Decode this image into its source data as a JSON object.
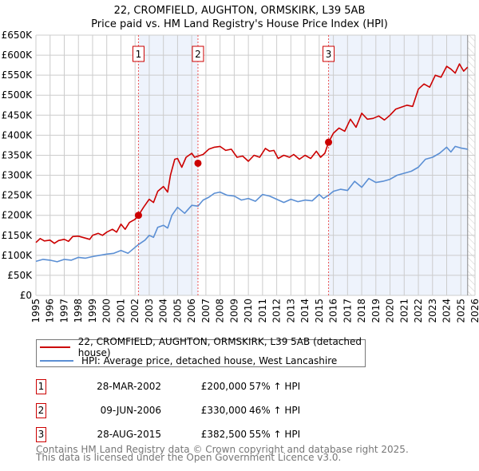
{
  "chart_data": {
    "type": "line",
    "title": "22, CROMFIELD, AUGHTON, ORMSKIRK, L39 5AB",
    "subtitle": "Price paid vs. HM Land Registry's House Price Index (HPI)",
    "xlim": [
      1995,
      2026
    ],
    "ylim": [
      0,
      650000
    ],
    "y_ticks": [
      0,
      50000,
      100000,
      150000,
      200000,
      250000,
      300000,
      350000,
      400000,
      450000,
      500000,
      550000,
      600000,
      650000
    ],
    "y_tick_labels": [
      "£0",
      "£50K",
      "£100K",
      "£150K",
      "£200K",
      "£250K",
      "£300K",
      "£350K",
      "£400K",
      "£450K",
      "£500K",
      "£550K",
      "£600K",
      "£650K"
    ],
    "x_tick_labels": [
      "1995",
      "1996",
      "1997",
      "1998",
      "1999",
      "2000",
      "2001",
      "2002",
      "2003",
      "2004",
      "2005",
      "2006",
      "2007",
      "2008",
      "2009",
      "2010",
      "2011",
      "2012",
      "2013",
      "2014",
      "2015",
      "2016",
      "2017",
      "2018",
      "2019",
      "2020",
      "2021",
      "2022",
      "2023",
      "2024",
      "2025",
      "2026"
    ],
    "grid": true,
    "shaded_ranges": [
      [
        2002.24,
        2006.44
      ],
      [
        2015.66,
        2025.48
      ]
    ],
    "hatched_from": 2025.48,
    "colors": {
      "property": "#cc0000",
      "hpi": "#5b8fd4",
      "shade": "#eef3fc"
    },
    "series": [
      {
        "name": "22, CROMFIELD, AUGHTON, ORMSKIRK, L39 5AB (detached house)",
        "x": [
          1995,
          1995.3,
          1995.6,
          1996,
          1996.3,
          1996.6,
          1997,
          1997.3,
          1997.6,
          1998,
          1998.4,
          1998.8,
          1999,
          1999.4,
          1999.7,
          2000,
          2000.4,
          2000.7,
          2001,
          2001.3,
          2001.6,
          2002,
          2002.24,
          2002.6,
          2003,
          2003.3,
          2003.6,
          2004,
          2004.3,
          2004.5,
          2004.8,
          2005,
          2005.3,
          2005.6,
          2006,
          2006.2,
          2006.44,
          2006.8,
          2007.2,
          2007.6,
          2008,
          2008.4,
          2008.8,
          2009.2,
          2009.6,
          2010,
          2010.4,
          2010.8,
          2011.2,
          2011.5,
          2011.8,
          2012.1,
          2012.5,
          2012.9,
          2013.2,
          2013.6,
          2014,
          2014.4,
          2014.8,
          2015.1,
          2015.4,
          2015.66,
          2016,
          2016.4,
          2016.8,
          2017.2,
          2017.6,
          2018,
          2018.4,
          2018.8,
          2019.2,
          2019.6,
          2020,
          2020.4,
          2020.8,
          2021.2,
          2021.6,
          2022,
          2022.4,
          2022.8,
          2023.2,
          2023.6,
          2024,
          2024.3,
          2024.6,
          2024.9,
          2025.2,
          2025.48
        ],
        "values": [
          132000,
          142000,
          136000,
          138000,
          130000,
          137000,
          140000,
          135000,
          147000,
          148000,
          144000,
          140000,
          150000,
          155000,
          150000,
          158000,
          165000,
          158000,
          178000,
          165000,
          182000,
          190000,
          200000,
          220000,
          240000,
          232000,
          260000,
          272000,
          258000,
          300000,
          340000,
          342000,
          320000,
          345000,
          355000,
          345000,
          348000,
          352000,
          365000,
          370000,
          372000,
          362000,
          365000,
          345000,
          348000,
          335000,
          350000,
          345000,
          367000,
          360000,
          362000,
          342000,
          350000,
          345000,
          352000,
          340000,
          350000,
          342000,
          360000,
          345000,
          355000,
          382000,
          405000,
          418000,
          410000,
          440000,
          420000,
          455000,
          440000,
          442000,
          448000,
          438000,
          450000,
          465000,
          470000,
          475000,
          472000,
          515000,
          528000,
          520000,
          550000,
          545000,
          572000,
          565000,
          555000,
          578000,
          560000,
          570000
        ]
      },
      {
        "name": "HPI: Average price, detached house, West Lancashire",
        "x": [
          1995,
          1995.5,
          1996,
          1996.5,
          1997,
          1997.5,
          1998,
          1998.5,
          1999,
          1999.5,
          2000,
          2000.5,
          2001,
          2001.5,
          2002,
          2002.24,
          2002.7,
          2003,
          2003.3,
          2003.6,
          2004,
          2004.3,
          2004.6,
          2005,
          2005.5,
          2006,
          2006.44,
          2006.8,
          2007.2,
          2007.6,
          2008,
          2008.5,
          2009,
          2009.5,
          2010,
          2010.5,
          2011,
          2011.5,
          2012,
          2012.5,
          2013,
          2013.5,
          2014,
          2014.5,
          2015,
          2015.3,
          2015.66,
          2016,
          2016.5,
          2017,
          2017.5,
          2018,
          2018.5,
          2019,
          2019.5,
          2020,
          2020.5,
          2021,
          2021.5,
          2022,
          2022.5,
          2023,
          2023.5,
          2024,
          2024.3,
          2024.6,
          2025,
          2025.48
        ],
        "values": [
          85000,
          90000,
          88000,
          84000,
          90000,
          88000,
          95000,
          93000,
          97000,
          100000,
          103000,
          105000,
          112000,
          105000,
          120000,
          127000,
          138000,
          150000,
          145000,
          170000,
          175000,
          168000,
          200000,
          220000,
          205000,
          225000,
          223000,
          238000,
          245000,
          255000,
          258000,
          250000,
          248000,
          238000,
          242000,
          235000,
          252000,
          248000,
          240000,
          232000,
          240000,
          234000,
          238000,
          236000,
          252000,
          242000,
          250000,
          260000,
          265000,
          262000,
          285000,
          270000,
          292000,
          282000,
          285000,
          290000,
          300000,
          305000,
          310000,
          320000,
          340000,
          345000,
          355000,
          370000,
          358000,
          372000,
          368000,
          365000
        ]
      }
    ],
    "sales": [
      {
        "label": "1",
        "x": 2002.24,
        "value": 200000
      },
      {
        "label": "2",
        "x": 2006.44,
        "value": 330000
      },
      {
        "label": "3",
        "x": 2015.66,
        "value": 382500
      }
    ]
  },
  "legend": {
    "property": "22, CROMFIELD, AUGHTON, ORMSKIRK, L39 5AB (detached house)",
    "hpi": "HPI: Average price, detached house, West Lancashire"
  },
  "transactions": [
    {
      "num": "1",
      "date": "28-MAR-2002",
      "price": "£200,000",
      "pct": "57% ↑ HPI"
    },
    {
      "num": "2",
      "date": "09-JUN-2006",
      "price": "£330,000",
      "pct": "46% ↑ HPI"
    },
    {
      "num": "3",
      "date": "28-AUG-2015",
      "price": "£382,500",
      "pct": "55% ↑ HPI"
    }
  ],
  "footer": {
    "line1": "Contains HM Land Registry data © Crown copyright and database right 2025.",
    "line2": "This data is licensed under the Open Government Licence v3.0."
  }
}
